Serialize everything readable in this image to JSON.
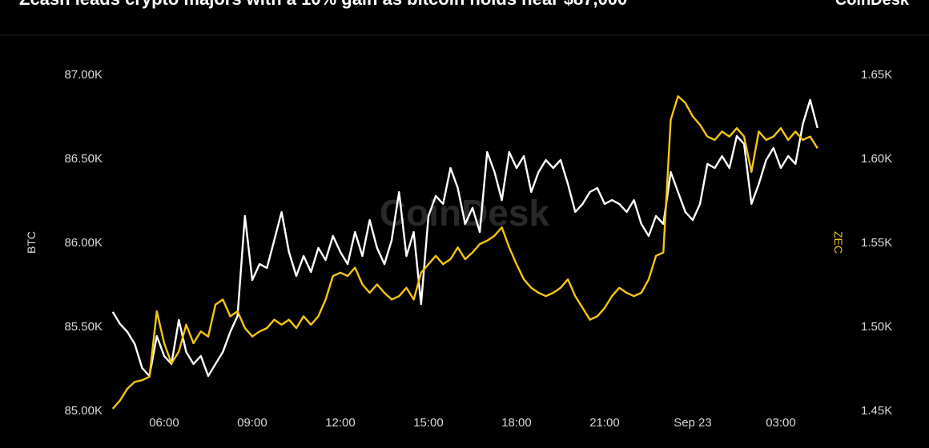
{
  "chart_data": {
    "type": "line",
    "title": "Zcash leads crypto majors with a 10% gain as bitcoin holds near $87,000",
    "logo": "CoinDesk",
    "watermark": "CoinDesk",
    "x": [
      "04:15",
      "04:30",
      "04:45",
      "05:00",
      "05:15",
      "05:30",
      "05:45",
      "06:00",
      "06:15",
      "06:30",
      "06:45",
      "07:00",
      "07:15",
      "07:30",
      "07:45",
      "08:00",
      "08:15",
      "08:30",
      "08:45",
      "09:00",
      "09:15",
      "09:30",
      "09:45",
      "10:00",
      "10:15",
      "10:30",
      "10:45",
      "11:00",
      "11:15",
      "11:30",
      "11:45",
      "12:00",
      "12:15",
      "12:30",
      "12:45",
      "13:00",
      "13:15",
      "13:30",
      "13:45",
      "14:00",
      "14:15",
      "14:30",
      "14:45",
      "15:00",
      "15:15",
      "15:30",
      "15:45",
      "16:00",
      "16:15",
      "16:30",
      "16:45",
      "17:00",
      "17:15",
      "17:30",
      "17:45",
      "18:00",
      "18:15",
      "18:30",
      "18:45",
      "19:00",
      "19:15",
      "19:30",
      "19:45",
      "20:00",
      "20:15",
      "20:30",
      "20:45",
      "21:00",
      "21:15",
      "21:30",
      "21:45",
      "22:00",
      "22:15",
      "22:30",
      "22:45",
      "23:00",
      "23:15",
      "23:30",
      "23:45",
      "00:00",
      "00:15",
      "00:30",
      "00:45",
      "01:00",
      "01:15",
      "01:30",
      "01:45",
      "02:00",
      "02:15",
      "02:30",
      "02:45",
      "03:00",
      "03:15",
      "03:30",
      "03:45",
      "04:00",
      "04:15"
    ],
    "xticks": [
      {
        "value": "06:00",
        "label": "06:00"
      },
      {
        "value": "09:00",
        "label": "09:00"
      },
      {
        "value": "12:00",
        "label": "12:00"
      },
      {
        "value": "15:00",
        "label": "15:00"
      },
      {
        "value": "18:00",
        "label": "18:00"
      },
      {
        "value": "21:00",
        "label": "21:00"
      },
      {
        "value": "00:00",
        "label": "Sep 23"
      },
      {
        "value": "03:00",
        "label": "03:00"
      }
    ],
    "series": [
      {
        "name": "BTC",
        "color": "#ffffff",
        "values": [
          85586,
          85514,
          85467,
          85395,
          85252,
          85205,
          85443,
          85324,
          85276,
          85538,
          85348,
          85276,
          85324,
          85205,
          85276,
          85348,
          85467,
          85562,
          86157,
          85776,
          85871,
          85848,
          86014,
          86181,
          85943,
          85800,
          85919,
          85824,
          85967,
          85895,
          86038,
          85943,
          85871,
          86062,
          85919,
          86133,
          85967,
          85871,
          86014,
          86300,
          85919,
          86062,
          85633,
          86157,
          86276,
          86229,
          86443,
          86324,
          86110,
          86205,
          86062,
          86538,
          86419,
          86252,
          86538,
          86443,
          86514,
          86300,
          86419,
          86490,
          86443,
          86490,
          86348,
          86181,
          86229,
          86300,
          86324,
          86229,
          86252,
          86229,
          86181,
          86252,
          86110,
          86038,
          86157,
          86110,
          86419,
          86300,
          86181,
          86133,
          86229,
          86467,
          86443,
          86514,
          86443,
          86633,
          86586,
          86229,
          86348,
          86490,
          86562,
          86443,
          86514,
          86467,
          86705,
          86848,
          86681
        ]
      },
      {
        "name": "ZEC",
        "color": "#f5c518",
        "axis": "y2",
        "values": [
          1451,
          1456,
          1463,
          1467,
          1468,
          1470,
          1509,
          1490,
          1478,
          1485,
          1501,
          1490,
          1497,
          1494,
          1513,
          1516,
          1506,
          1509,
          1499,
          1494,
          1497,
          1499,
          1504,
          1501,
          1504,
          1499,
          1506,
          1501,
          1506,
          1516,
          1530,
          1532,
          1530,
          1535,
          1525,
          1520,
          1525,
          1520,
          1516,
          1518,
          1523,
          1516,
          1532,
          1537,
          1542,
          1537,
          1540,
          1547,
          1540,
          1544,
          1549,
          1551,
          1554,
          1559,
          1547,
          1537,
          1528,
          1523,
          1520,
          1518,
          1520,
          1523,
          1528,
          1518,
          1511,
          1504,
          1506,
          1511,
          1518,
          1523,
          1520,
          1518,
          1520,
          1528,
          1542,
          1544,
          1623,
          1637,
          1633,
          1625,
          1620,
          1613,
          1611,
          1616,
          1613,
          1618,
          1613,
          1592,
          1616,
          1611,
          1613,
          1618,
          1611,
          1616,
          1611,
          1613,
          1606
        ]
      }
    ],
    "ylim": [
      85000,
      87000
    ],
    "yticks": [
      {
        "value": 85000,
        "label": "85.00K"
      },
      {
        "value": 85500,
        "label": "85.50K"
      },
      {
        "value": 86000,
        "label": "86.00K"
      },
      {
        "value": 86500,
        "label": "86.50K"
      },
      {
        "value": 87000,
        "label": "87.00K"
      }
    ],
    "y2lim": [
      1450,
      1650
    ],
    "y2ticks": [
      {
        "value": 1450,
        "label": "1.45K"
      },
      {
        "value": 1500,
        "label": "1.50K"
      },
      {
        "value": 1550,
        "label": "1.55K"
      },
      {
        "value": 1600,
        "label": "1.60K"
      },
      {
        "value": 1650,
        "label": "1.65K"
      }
    ],
    "grid": false
  }
}
